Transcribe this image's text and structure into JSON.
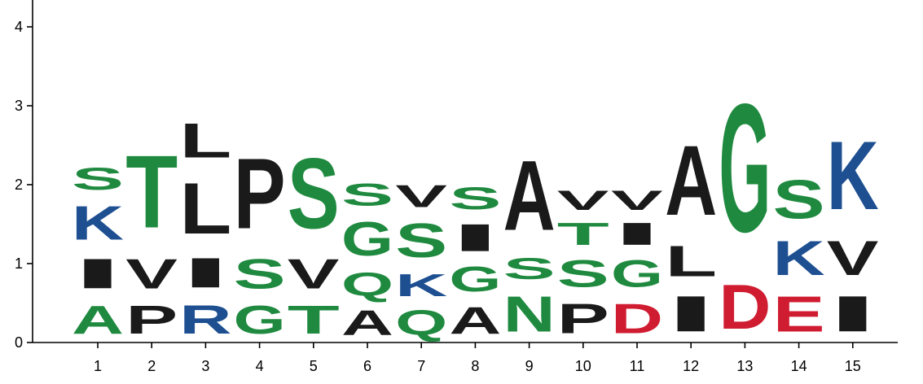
{
  "chart_data": {
    "type": "sequence-logo",
    "title": "",
    "xlabel": "",
    "ylabel": "",
    "ylim": [
      0,
      4.2
    ],
    "y_ticks": [
      0,
      1,
      2,
      3,
      4
    ],
    "grid": false,
    "colors": {
      "green": "#1f8a3f",
      "blue": "#1d4f91",
      "red": "#d01c31",
      "black": "#1a1a1a"
    },
    "positions": [
      {
        "label": "1",
        "letters": [
          {
            "char": "A",
            "height": 0.57,
            "color": "green"
          },
          {
            "char": "I",
            "height": 0.6,
            "color": "black"
          },
          {
            "char": "K",
            "height": 0.68,
            "color": "blue"
          },
          {
            "char": "S",
            "height": 0.45,
            "color": "green"
          }
        ]
      },
      {
        "label": "2",
        "letters": [
          {
            "char": "P",
            "height": 0.57,
            "color": "black"
          },
          {
            "char": "V",
            "height": 0.6,
            "color": "black"
          },
          {
            "char": "T",
            "height": 1.47,
            "color": "green"
          }
        ]
      },
      {
        "label": "3",
        "letters": [
          {
            "char": "R",
            "height": 0.58,
            "color": "blue"
          },
          {
            "char": "I",
            "height": 0.6,
            "color": "black"
          },
          {
            "char": "L",
            "height": 1.03,
            "color": "black"
          },
          {
            "char": "L",
            "height": 0.7,
            "color": "black"
          }
        ]
      },
      {
        "label": "4",
        "letters": [
          {
            "char": "G",
            "height": 0.57,
            "color": "green"
          },
          {
            "char": "S",
            "height": 0.6,
            "color": "green"
          },
          {
            "char": "P",
            "height": 1.43,
            "color": "black"
          }
        ]
      },
      {
        "label": "5",
        "letters": [
          {
            "char": "T",
            "height": 0.57,
            "color": "green"
          },
          {
            "char": "V",
            "height": 0.6,
            "color": "black"
          },
          {
            "char": "S",
            "height": 1.43,
            "color": "green"
          }
        ]
      },
      {
        "label": "6",
        "letters": [
          {
            "char": "A",
            "height": 0.5,
            "color": "black"
          },
          {
            "char": "Q",
            "height": 0.47,
            "color": "green"
          },
          {
            "char": "G",
            "height": 0.68,
            "color": "green"
          },
          {
            "char": "S",
            "height": 0.45,
            "color": "green"
          }
        ]
      },
      {
        "label": "7",
        "letters": [
          {
            "char": "Q",
            "height": 0.5,
            "color": "green"
          },
          {
            "char": "K",
            "height": 0.45,
            "color": "blue"
          },
          {
            "char": "S",
            "height": 0.68,
            "color": "green"
          },
          {
            "char": "V",
            "height": 0.45,
            "color": "black"
          }
        ]
      },
      {
        "label": "8",
        "letters": [
          {
            "char": "A",
            "height": 0.55,
            "color": "black"
          },
          {
            "char": "G",
            "height": 0.5,
            "color": "green"
          },
          {
            "char": "I",
            "height": 0.55,
            "color": "black"
          },
          {
            "char": "S",
            "height": 0.45,
            "color": "green"
          }
        ]
      },
      {
        "label": "9",
        "letters": [
          {
            "char": "N",
            "height": 0.72,
            "color": "green"
          },
          {
            "char": "S",
            "height": 0.43,
            "color": "green"
          },
          {
            "char": "A",
            "height": 1.42,
            "color": "black"
          }
        ]
      },
      {
        "label": "10",
        "letters": [
          {
            "char": "P",
            "height": 0.6,
            "color": "black"
          },
          {
            "char": "S",
            "height": 0.55,
            "color": "green"
          },
          {
            "char": "T",
            "height": 0.45,
            "color": "green"
          },
          {
            "char": "V",
            "height": 0.4,
            "color": "black"
          }
        ]
      },
      {
        "label": "11",
        "letters": [
          {
            "char": "D",
            "height": 0.6,
            "color": "red"
          },
          {
            "char": "G",
            "height": 0.55,
            "color": "green"
          },
          {
            "char": "I",
            "height": 0.45,
            "color": "black"
          },
          {
            "char": "V",
            "height": 0.4,
            "color": "black"
          }
        ]
      },
      {
        "label": "12",
        "letters": [
          {
            "char": "I",
            "height": 0.72,
            "color": "black"
          },
          {
            "char": "L",
            "height": 0.62,
            "color": "black"
          },
          {
            "char": "A",
            "height": 1.42,
            "color": "black"
          }
        ]
      },
      {
        "label": "13",
        "letters": [
          {
            "char": "D",
            "height": 0.9,
            "color": "red"
          },
          {
            "char": "G",
            "height": 2.6,
            "color": "green"
          }
        ]
      },
      {
        "label": "14",
        "letters": [
          {
            "char": "E",
            "height": 0.72,
            "color": "red"
          },
          {
            "char": "K",
            "height": 0.7,
            "color": "blue"
          },
          {
            "char": "S",
            "height": 0.78,
            "color": "green"
          }
        ]
      },
      {
        "label": "15",
        "letters": [
          {
            "char": "I",
            "height": 0.72,
            "color": "black"
          },
          {
            "char": "V",
            "height": 0.7,
            "color": "black"
          },
          {
            "char": "K",
            "height": 1.38,
            "color": "blue"
          }
        ]
      }
    ]
  }
}
